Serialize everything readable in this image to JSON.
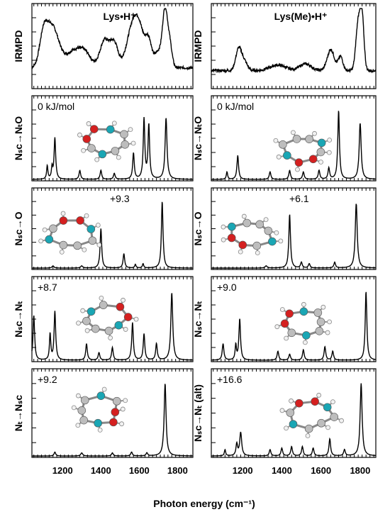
{
  "chart_data": {
    "type": "line",
    "xlabel": "Photon energy (cm⁻¹)",
    "xlim": [
      1040,
      1880
    ],
    "x_ticks": [
      "1200",
      "1400",
      "1600",
      "1800"
    ],
    "columns": [
      {
        "title": "Lys•H⁺",
        "panels": [
          {
            "label": "IRMPD",
            "energy": "",
            "experimental": true,
            "baseline": 0.35,
            "bands": [
              [
                1145,
                0.75,
                35
              ],
              [
                1100,
                0.45,
                20
              ],
              [
                1260,
                0.3,
                40
              ],
              [
                1320,
                0.22,
                30
              ],
              [
                1420,
                0.5,
                25
              ],
              [
                1470,
                0.42,
                20
              ],
              [
                1560,
                0.55,
                30
              ],
              [
                1600,
                0.65,
                30
              ],
              [
                1650,
                0.4,
                15
              ],
              [
                1735,
                1.0,
                13
              ],
              [
                1700,
                0.3,
                20
              ],
              [
                1760,
                0.4,
                12
              ]
            ]
          },
          {
            "label": "Nₛᴄ→NₜO",
            "energy": "0 kJ/mol",
            "bands": [
              [
                1160,
                0.55,
                5
              ],
              [
                1120,
                0.18,
                4
              ],
              [
                1145,
                0.15,
                4
              ],
              [
                1290,
                0.12,
                5
              ],
              [
                1400,
                0.12,
                5
              ],
              [
                1470,
                0.08,
                5
              ],
              [
                1570,
                0.35,
                5
              ],
              [
                1625,
                0.8,
                5
              ],
              [
                1650,
                0.72,
                5
              ],
              [
                1740,
                0.82,
                6
              ]
            ]
          },
          {
            "label": "Nₛᴄ→O",
            "energy": "+9.3",
            "bands": [
              [
                1150,
                0.03,
                6
              ],
              [
                1300,
                0.03,
                6
              ],
              [
                1400,
                0.55,
                5
              ],
              [
                1520,
                0.2,
                5
              ],
              [
                1580,
                0.05,
                4
              ],
              [
                1620,
                0.06,
                4
              ],
              [
                1720,
                0.93,
                5
              ]
            ]
          },
          {
            "label": "Nₛᴄ→Nₜ",
            "energy": "+8.7",
            "bands": [
              [
                1050,
                0.6,
                5
              ],
              [
                1160,
                0.65,
                5
              ],
              [
                1135,
                0.35,
                4
              ],
              [
                1325,
                0.22,
                5
              ],
              [
                1390,
                0.1,
                5
              ],
              [
                1460,
                0.17,
                5
              ],
              [
                1565,
                0.5,
                5
              ],
              [
                1625,
                0.35,
                5
              ],
              [
                1690,
                0.22,
                5
              ],
              [
                1770,
                0.9,
                6
              ]
            ]
          },
          {
            "label": "Nₜ→Nₛᴄ",
            "energy": "+9.2",
            "bands": [
              [
                1160,
                0.05,
                5
              ],
              [
                1300,
                0.04,
                6
              ],
              [
                1460,
                0.04,
                5
              ],
              [
                1560,
                0.05,
                5
              ],
              [
                1640,
                0.04,
                5
              ],
              [
                1735,
                0.93,
                6
              ]
            ]
          }
        ]
      },
      {
        "title": "Lys(Me)•H⁺",
        "panels": [
          {
            "label": "IRMPD",
            "energy": "",
            "experimental": true,
            "baseline": 0.3,
            "bands": [
              [
                1180,
                0.4,
                15
              ],
              [
                1210,
                0.15,
                15
              ],
              [
                1380,
                0.1,
                40
              ],
              [
                1520,
                0.12,
                30
              ],
              [
                1650,
                0.38,
                18
              ],
              [
                1700,
                0.25,
                12
              ],
              [
                1790,
                0.85,
                12
              ],
              [
                1810,
                0.9,
                10
              ]
            ]
          },
          {
            "label": "Nₛᴄ→NₜO",
            "energy": "0 kJ/mol",
            "bands": [
              [
                1175,
                0.32,
                5
              ],
              [
                1120,
                0.1,
                4
              ],
              [
                1340,
                0.1,
                5
              ],
              [
                1440,
                0.12,
                5
              ],
              [
                1510,
                0.1,
                5
              ],
              [
                1590,
                0.12,
                5
              ],
              [
                1640,
                0.15,
                5
              ],
              [
                1690,
                0.92,
                5
              ],
              [
                1800,
                0.75,
                6
              ]
            ]
          },
          {
            "label": "Nₛᴄ→O",
            "energy": "+6.1",
            "bands": [
              [
                1320,
                0.03,
                6
              ],
              [
                1440,
                0.75,
                5
              ],
              [
                1500,
                0.08,
                5
              ],
              [
                1540,
                0.06,
                5
              ],
              [
                1670,
                0.08,
                5
              ],
              [
                1780,
                0.9,
                6
              ]
            ]
          },
          {
            "label": "Nₛᴄ→Nₜ",
            "energy": "+9.0",
            "bands": [
              [
                1100,
                0.22,
                5
              ],
              [
                1185,
                0.55,
                5
              ],
              [
                1165,
                0.2,
                4
              ],
              [
                1380,
                0.12,
                5
              ],
              [
                1440,
                0.08,
                5
              ],
              [
                1510,
                0.14,
                5
              ],
              [
                1620,
                0.18,
                5
              ],
              [
                1660,
                0.12,
                5
              ],
              [
                1830,
                0.92,
                5
              ]
            ]
          },
          {
            "label": "Nₛᴄ→Nₜ (alt)",
            "energy": "+16.6",
            "bands": [
              [
                1190,
                0.3,
                6
              ],
              [
                1170,
                0.15,
                5
              ],
              [
                1110,
                0.08,
                4
              ],
              [
                1340,
                0.08,
                5
              ],
              [
                1400,
                0.1,
                5
              ],
              [
                1450,
                0.12,
                5
              ],
              [
                1505,
                0.12,
                5
              ],
              [
                1560,
                0.1,
                5
              ],
              [
                1645,
                0.22,
                5
              ],
              [
                1720,
                0.08,
                5
              ],
              [
                1805,
                0.93,
                6
              ]
            ]
          }
        ]
      }
    ]
  },
  "colors": {
    "line": "#000000",
    "axis": "#000000",
    "carbon": "#bdbdbd",
    "nitrogen": "#1aa6b4",
    "oxygen": "#d42020",
    "hydrogen": "#f2f2f2"
  },
  "molecules": [
    "ball-and-stick-structure",
    "ball-and-stick-structure",
    "ball-and-stick-structure",
    "ball-and-stick-structure",
    "ball-and-stick-structure",
    "ball-and-stick-structure",
    "ball-and-stick-structure",
    "ball-and-stick-structure"
  ]
}
